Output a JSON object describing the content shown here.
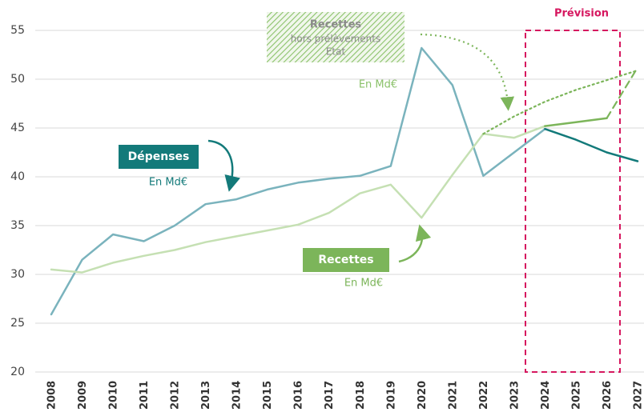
{
  "chart_data": {
    "type": "line",
    "categories": [
      "2008",
      "2009",
      "2010",
      "2011",
      "2012",
      "2013",
      "2014",
      "2015",
      "2016",
      "2017",
      "2018",
      "2019",
      "2020",
      "2021",
      "2022",
      "2023",
      "2024",
      "2025",
      "2026",
      "2027"
    ],
    "series": [
      {
        "name": "Dépenses",
        "color": "#7ab3bd",
        "style": "solid",
        "values": [
          25.9,
          31.5,
          34.1,
          33.4,
          35.0,
          37.2,
          37.7,
          38.7,
          39.4,
          39.8,
          40.1,
          41.1,
          53.2,
          49.4,
          40.1,
          42.5,
          44.9,
          null,
          null,
          null
        ]
      },
      {
        "color": "#137a7a",
        "style": "solid",
        "values": [
          null,
          null,
          null,
          null,
          null,
          null,
          null,
          null,
          null,
          null,
          null,
          null,
          null,
          null,
          null,
          null,
          44.9,
          43.8,
          42.5,
          41.6
        ]
      },
      {
        "name": "Recettes",
        "color": "#c5e0b3",
        "style": "solid",
        "values": [
          30.5,
          30.2,
          31.2,
          31.9,
          32.5,
          33.3,
          33.9,
          34.5,
          35.1,
          36.3,
          38.3,
          39.2,
          35.8,
          40.2,
          44.4,
          44.0,
          45.2,
          null,
          null,
          null
        ]
      },
      {
        "color": "#7cb55a",
        "style": "solid",
        "values": [
          null,
          null,
          null,
          null,
          null,
          null,
          null,
          null,
          null,
          null,
          null,
          null,
          null,
          null,
          null,
          null,
          45.2,
          45.6,
          46.0,
          null
        ]
      },
      {
        "color": "#7cb55a",
        "style": "dashed",
        "values": [
          null,
          null,
          null,
          null,
          null,
          null,
          null,
          null,
          null,
          null,
          null,
          null,
          null,
          null,
          null,
          null,
          null,
          null,
          46.0,
          51.2
        ]
      },
      {
        "color": "#7cb55a",
        "style": "dotted",
        "values": [
          null,
          null,
          null,
          null,
          null,
          null,
          null,
          null,
          null,
          null,
          null,
          null,
          null,
          null,
          44.4,
          46.2,
          47.7,
          48.9,
          49.9,
          50.9
        ]
      }
    ],
    "ylim": [
      20,
      55
    ],
    "yticks": [
      20,
      25,
      30,
      35,
      40,
      45,
      50,
      55
    ],
    "grid": true,
    "annotations": [
      "En Md€",
      "En Md€",
      "hors prélèvements",
      "Etat",
      "En Md€",
      "Prévision"
    ]
  }
}
